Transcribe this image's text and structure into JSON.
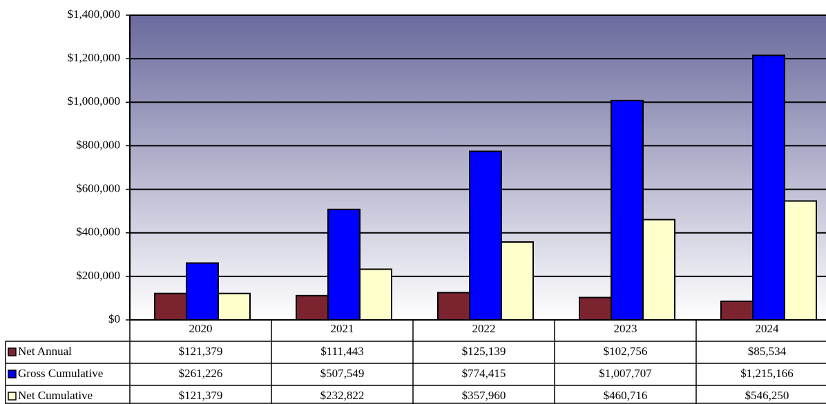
{
  "chart_data": {
    "type": "bar",
    "categories": [
      "2020",
      "2021",
      "2022",
      "2023",
      "2024"
    ],
    "series": [
      {
        "name": "Net Annual",
        "color": "#7b2430",
        "values": [
          121379,
          111443,
          125139,
          102756,
          85534
        ],
        "value_labels": [
          "$121,379",
          "$111,443",
          "$125,139",
          "$102,756",
          "$85,534"
        ]
      },
      {
        "name": "Gross Cumulative",
        "color": "#0000ff",
        "values": [
          261226,
          507549,
          774415,
          1007707,
          1215166
        ],
        "value_labels": [
          "$261,226",
          "$507,549",
          "$774,415",
          "$1,007,707",
          "$1,215,166"
        ]
      },
      {
        "name": "Net Cumulative",
        "color": "#ffffcc",
        "values": [
          121379,
          232822,
          357960,
          460716,
          546250
        ],
        "value_labels": [
          "$121,379",
          "$232,822",
          "$357,960",
          "$460,716",
          "$546,250"
        ]
      }
    ],
    "ylim": [
      0,
      1400000
    ],
    "yticks": [
      {
        "value": 0,
        "label": "$0"
      },
      {
        "value": 200000,
        "label": "$200,000"
      },
      {
        "value": 400000,
        "label": "$400,000"
      },
      {
        "value": 600000,
        "label": "$600,000"
      },
      {
        "value": 800000,
        "label": "$800,000"
      },
      {
        "value": 1000000,
        "label": "$1,000,000"
      },
      {
        "value": 1200000,
        "label": "$1,200,000"
      },
      {
        "value": 1400000,
        "label": "$1,400,000"
      }
    ],
    "grid": true
  }
}
